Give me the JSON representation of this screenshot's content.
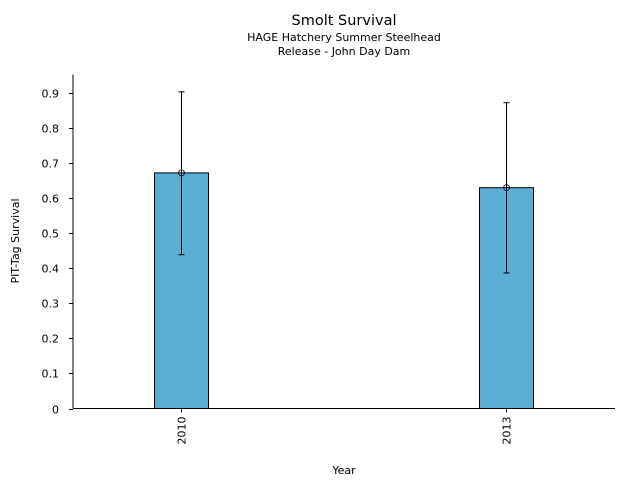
{
  "chart_data": {
    "type": "bar",
    "title": "Smolt Survival",
    "subtitle_lines": [
      "HAGE Hatchery Summer Steelhead",
      "Release - John Day Dam"
    ],
    "xlabel": "Year",
    "ylabel": "PIT-Tag Survival",
    "categories": [
      "2010",
      "2013"
    ],
    "values": [
      0.671,
      0.629
    ],
    "error_upper": [
      0.902,
      0.871
    ],
    "error_lower": [
      0.438,
      0.386
    ],
    "ylim": [
      0,
      0.95
    ],
    "yticks": [
      0,
      0.1,
      0.2,
      0.3,
      0.4,
      0.5,
      0.6,
      0.7,
      0.8,
      0.9
    ],
    "ytick_labels": [
      "0",
      "0.1",
      "0.2",
      "0.3",
      "0.4",
      "0.5",
      "0.6",
      "0.7",
      "0.8",
      "0.9"
    ],
    "grid": false,
    "legend": "none",
    "bar_color": "#5AAED6",
    "edge_color": "#000000",
    "point_marker": "open-circle"
  }
}
